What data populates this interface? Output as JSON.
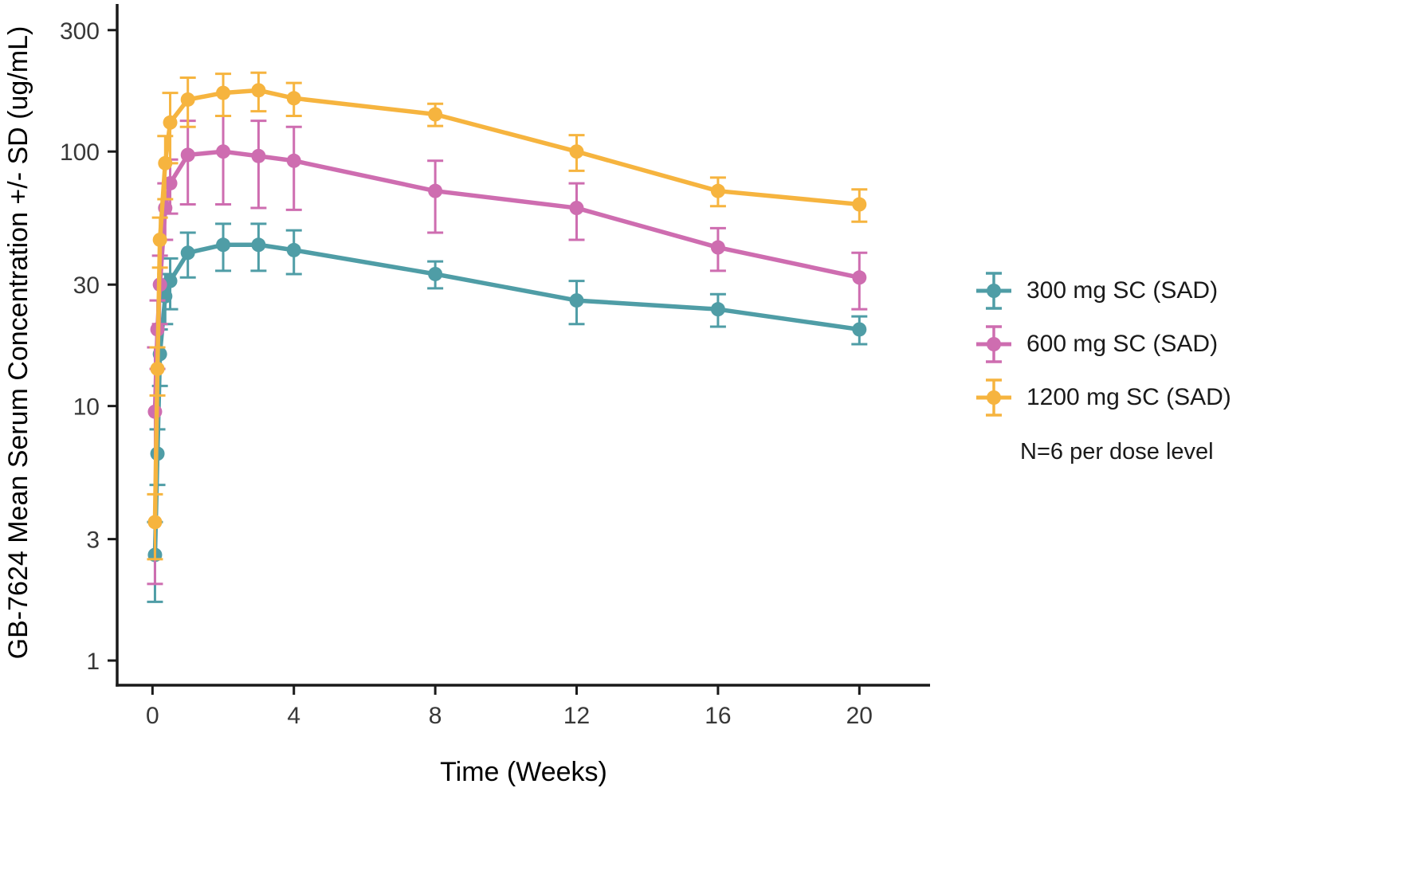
{
  "chart_data": {
    "type": "line",
    "title": "",
    "xlabel": "Time (Weeks)",
    "ylabel": "GB-7624 Mean Serum Concentration +/- SD (ug/mL)",
    "x_scale": "linear",
    "y_scale": "log10",
    "xlim": [
      -1,
      22
    ],
    "ylim": [
      0.8,
      380
    ],
    "x_ticks": [
      0,
      4,
      8,
      12,
      16,
      20
    ],
    "y_ticks": [
      1,
      3,
      10,
      30,
      100,
      300
    ],
    "grid": false,
    "legend_position": "right",
    "note": "N=6 per dose level",
    "x": [
      0.07,
      0.14,
      0.21,
      0.36,
      0.5,
      1,
      2,
      3,
      4,
      8,
      12,
      16,
      20
    ],
    "series": [
      {
        "name": "300 mg SC (SAD)",
        "color": "#4f9da6",
        "values": [
          2.6,
          6.5,
          16,
          27,
          31,
          40,
          43,
          43,
          41,
          33,
          26,
          24,
          20
        ],
        "sd": [
          0.9,
          1.6,
          4,
          6,
          7,
          8,
          9,
          9,
          8,
          4,
          5,
          3.5,
          2.5
        ]
      },
      {
        "name": "600 mg SC (SAD)",
        "color": "#ce6db0",
        "values": [
          9.5,
          20,
          30,
          60,
          75,
          97,
          100,
          96,
          92,
          70,
          60,
          42,
          32
        ],
        "sd": [
          7.5,
          6,
          9,
          15,
          18,
          35,
          38,
          36,
          33,
          22,
          15,
          8,
          8
        ]
      },
      {
        "name": "1200 mg SC (SAD)",
        "color": "#f6b43f",
        "values": [
          3.5,
          14,
          45,
          90,
          130,
          160,
          170,
          174,
          162,
          140,
          100,
          70,
          62
        ],
        "sd": [
          1,
          3,
          10,
          25,
          40,
          35,
          32,
          30,
          24,
          14,
          16,
          9,
          9
        ]
      }
    ]
  }
}
